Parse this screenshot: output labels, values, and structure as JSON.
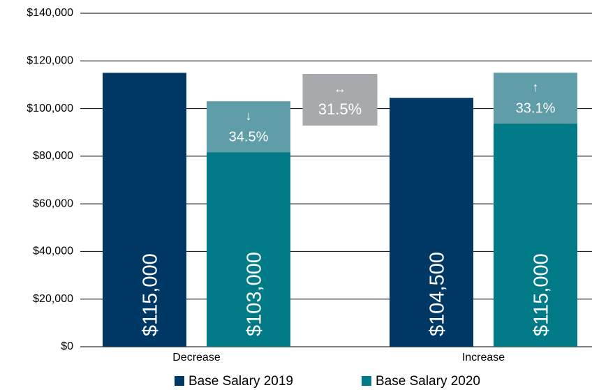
{
  "chart_data": {
    "type": "bar",
    "categories": [
      "Decrease",
      "Increase"
    ],
    "series": [
      {
        "name": "Base Salary 2019",
        "color": "#003865",
        "values": [
          115000,
          104500
        ],
        "value_labels": [
          "$115,000",
          "$104,500"
        ]
      },
      {
        "name": "Base Salary 2020",
        "color": "#007a87",
        "values": [
          103000,
          115000
        ],
        "value_labels": [
          "$103,000",
          "$115,000"
        ]
      }
    ],
    "annotations": [
      {
        "symbol": "↓",
        "text": "34.5%"
      },
      {
        "symbol": "↔",
        "text": "31.5%"
      },
      {
        "symbol": "↑",
        "text": "33.1%"
      }
    ],
    "ylim": [
      0,
      140000
    ],
    "yticks": [
      {
        "value": 0,
        "label": "$0"
      },
      {
        "value": 20000,
        "label": "$20,000"
      },
      {
        "value": 40000,
        "label": "$40,000"
      },
      {
        "value": 60000,
        "label": "$60,000"
      },
      {
        "value": 80000,
        "label": "$80,000"
      },
      {
        "value": 100000,
        "label": "$100,000"
      },
      {
        "value": 120000,
        "label": "$120,000"
      },
      {
        "value": 140000,
        "label": "$140,000"
      }
    ],
    "grid": true,
    "legend": "bottom"
  }
}
